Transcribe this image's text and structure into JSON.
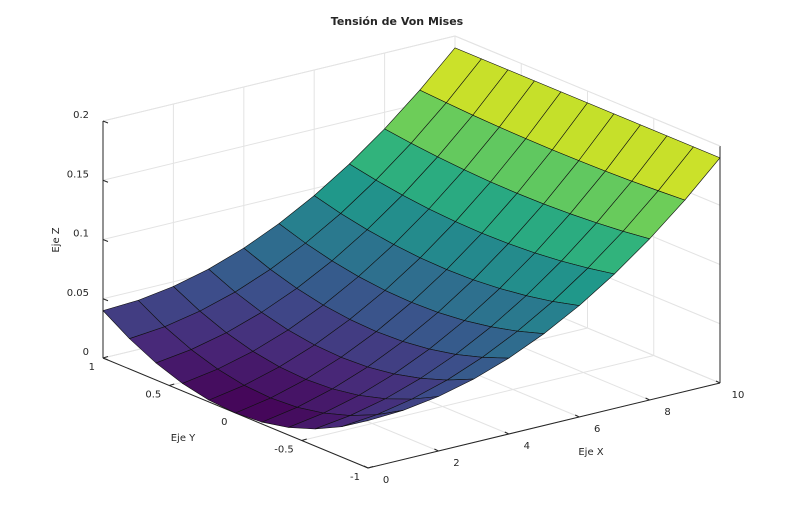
{
  "chart_data": {
    "type": "surface",
    "title": "Tensión de Von Mises",
    "xlabel": "Eje X",
    "ylabel": "Eje Y",
    "zlabel": "Eje Z",
    "colormap": "viridis",
    "grid": true,
    "xlim": [
      0,
      10
    ],
    "ylim": [
      -1,
      1
    ],
    "zlim": [
      0,
      0.2
    ],
    "xticks": [
      0,
      2,
      4,
      6,
      8,
      10
    ],
    "yticks": [
      -1,
      -0.5,
      0,
      0.5,
      1
    ],
    "zticks": [
      0,
      0.05,
      0.1,
      0.15,
      0.2
    ],
    "x": [
      0,
      1,
      2,
      3,
      4,
      5,
      6,
      7,
      8,
      9,
      10
    ],
    "y": [
      -1,
      -0.8,
      -0.6,
      -0.4,
      -0.2,
      0,
      0.2,
      0.4,
      0.6,
      0.8,
      1
    ],
    "z": [
      [
        0.04,
        0.0415,
        0.046,
        0.0535,
        0.064,
        0.0775,
        0.094,
        0.1135,
        0.136,
        0.1615,
        0.19
      ],
      [
        0.0256,
        0.0285,
        0.0345,
        0.0434,
        0.0554,
        0.0703,
        0.0882,
        0.1092,
        0.1331,
        0.1601,
        0.19
      ],
      [
        0.0144,
        0.0185,
        0.0255,
        0.0356,
        0.0486,
        0.0647,
        0.0838,
        0.1058,
        0.1309,
        0.1589,
        0.19
      ],
      [
        0.0064,
        0.0113,
        0.0191,
        0.03,
        0.0438,
        0.0607,
        0.0806,
        0.1034,
        0.1293,
        0.1581,
        0.19
      ],
      [
        0.0016,
        0.0069,
        0.0153,
        0.0266,
        0.041,
        0.0583,
        0.0786,
        0.102,
        0.1283,
        0.1577,
        0.19
      ],
      [
        0,
        0.0055,
        0.014,
        0.0255,
        0.04,
        0.0575,
        0.078,
        0.1015,
        0.128,
        0.1575,
        0.19
      ],
      [
        0.0016,
        0.0069,
        0.0153,
        0.0266,
        0.041,
        0.0583,
        0.0786,
        0.102,
        0.1283,
        0.1577,
        0.19
      ],
      [
        0.0064,
        0.0113,
        0.0191,
        0.03,
        0.0438,
        0.0607,
        0.0806,
        0.1034,
        0.1293,
        0.1581,
        0.19
      ],
      [
        0.0144,
        0.0185,
        0.0255,
        0.0356,
        0.0486,
        0.0647,
        0.0838,
        0.1058,
        0.1309,
        0.1589,
        0.19
      ],
      [
        0.0256,
        0.0285,
        0.0345,
        0.0434,
        0.0554,
        0.0703,
        0.0882,
        0.1092,
        0.1331,
        0.1601,
        0.19
      ],
      [
        0.04,
        0.0415,
        0.046,
        0.0535,
        0.064,
        0.0775,
        0.094,
        0.1135,
        0.136,
        0.1615,
        0.19
      ]
    ]
  }
}
